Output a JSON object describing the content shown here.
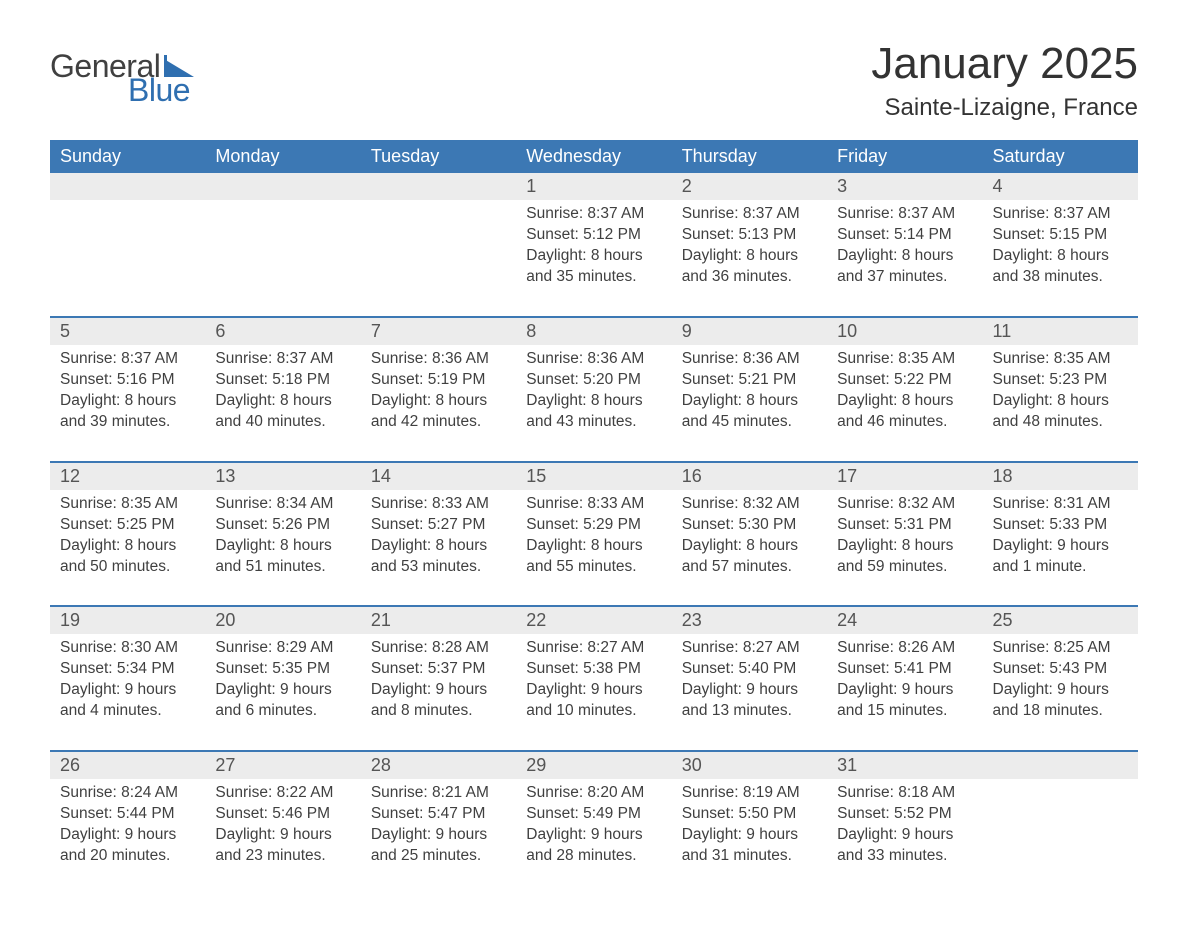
{
  "logo": {
    "word1": "General",
    "word2": "Blue",
    "flag_color": "#2f6fb0",
    "text_color": "#404040"
  },
  "title": "January 2025",
  "location": "Sainte-Lizaigne, France",
  "colors": {
    "header_bg": "#3c78b4",
    "header_text": "#ffffff",
    "daynum_bg": "#ececec",
    "row_separator": "#3c78b4",
    "body_text": "#404040",
    "background": "#ffffff"
  },
  "fonts": {
    "title_size_pt": 33,
    "location_size_pt": 18,
    "dayheader_size_pt": 14,
    "body_size_pt": 12
  },
  "day_headers": [
    "Sunday",
    "Monday",
    "Tuesday",
    "Wednesday",
    "Thursday",
    "Friday",
    "Saturday"
  ],
  "weeks": [
    [
      null,
      null,
      null,
      {
        "d": "1",
        "sunrise": "Sunrise: 8:37 AM",
        "sunset": "Sunset: 5:12 PM",
        "dl1": "Daylight: 8 hours",
        "dl2": "and 35 minutes."
      },
      {
        "d": "2",
        "sunrise": "Sunrise: 8:37 AM",
        "sunset": "Sunset: 5:13 PM",
        "dl1": "Daylight: 8 hours",
        "dl2": "and 36 minutes."
      },
      {
        "d": "3",
        "sunrise": "Sunrise: 8:37 AM",
        "sunset": "Sunset: 5:14 PM",
        "dl1": "Daylight: 8 hours",
        "dl2": "and 37 minutes."
      },
      {
        "d": "4",
        "sunrise": "Sunrise: 8:37 AM",
        "sunset": "Sunset: 5:15 PM",
        "dl1": "Daylight: 8 hours",
        "dl2": "and 38 minutes."
      }
    ],
    [
      {
        "d": "5",
        "sunrise": "Sunrise: 8:37 AM",
        "sunset": "Sunset: 5:16 PM",
        "dl1": "Daylight: 8 hours",
        "dl2": "and 39 minutes."
      },
      {
        "d": "6",
        "sunrise": "Sunrise: 8:37 AM",
        "sunset": "Sunset: 5:18 PM",
        "dl1": "Daylight: 8 hours",
        "dl2": "and 40 minutes."
      },
      {
        "d": "7",
        "sunrise": "Sunrise: 8:36 AM",
        "sunset": "Sunset: 5:19 PM",
        "dl1": "Daylight: 8 hours",
        "dl2": "and 42 minutes."
      },
      {
        "d": "8",
        "sunrise": "Sunrise: 8:36 AM",
        "sunset": "Sunset: 5:20 PM",
        "dl1": "Daylight: 8 hours",
        "dl2": "and 43 minutes."
      },
      {
        "d": "9",
        "sunrise": "Sunrise: 8:36 AM",
        "sunset": "Sunset: 5:21 PM",
        "dl1": "Daylight: 8 hours",
        "dl2": "and 45 minutes."
      },
      {
        "d": "10",
        "sunrise": "Sunrise: 8:35 AM",
        "sunset": "Sunset: 5:22 PM",
        "dl1": "Daylight: 8 hours",
        "dl2": "and 46 minutes."
      },
      {
        "d": "11",
        "sunrise": "Sunrise: 8:35 AM",
        "sunset": "Sunset: 5:23 PM",
        "dl1": "Daylight: 8 hours",
        "dl2": "and 48 minutes."
      }
    ],
    [
      {
        "d": "12",
        "sunrise": "Sunrise: 8:35 AM",
        "sunset": "Sunset: 5:25 PM",
        "dl1": "Daylight: 8 hours",
        "dl2": "and 50 minutes."
      },
      {
        "d": "13",
        "sunrise": "Sunrise: 8:34 AM",
        "sunset": "Sunset: 5:26 PM",
        "dl1": "Daylight: 8 hours",
        "dl2": "and 51 minutes."
      },
      {
        "d": "14",
        "sunrise": "Sunrise: 8:33 AM",
        "sunset": "Sunset: 5:27 PM",
        "dl1": "Daylight: 8 hours",
        "dl2": "and 53 minutes."
      },
      {
        "d": "15",
        "sunrise": "Sunrise: 8:33 AM",
        "sunset": "Sunset: 5:29 PM",
        "dl1": "Daylight: 8 hours",
        "dl2": "and 55 minutes."
      },
      {
        "d": "16",
        "sunrise": "Sunrise: 8:32 AM",
        "sunset": "Sunset: 5:30 PM",
        "dl1": "Daylight: 8 hours",
        "dl2": "and 57 minutes."
      },
      {
        "d": "17",
        "sunrise": "Sunrise: 8:32 AM",
        "sunset": "Sunset: 5:31 PM",
        "dl1": "Daylight: 8 hours",
        "dl2": "and 59 minutes."
      },
      {
        "d": "18",
        "sunrise": "Sunrise: 8:31 AM",
        "sunset": "Sunset: 5:33 PM",
        "dl1": "Daylight: 9 hours",
        "dl2": "and 1 minute."
      }
    ],
    [
      {
        "d": "19",
        "sunrise": "Sunrise: 8:30 AM",
        "sunset": "Sunset: 5:34 PM",
        "dl1": "Daylight: 9 hours",
        "dl2": "and 4 minutes."
      },
      {
        "d": "20",
        "sunrise": "Sunrise: 8:29 AM",
        "sunset": "Sunset: 5:35 PM",
        "dl1": "Daylight: 9 hours",
        "dl2": "and 6 minutes."
      },
      {
        "d": "21",
        "sunrise": "Sunrise: 8:28 AM",
        "sunset": "Sunset: 5:37 PM",
        "dl1": "Daylight: 9 hours",
        "dl2": "and 8 minutes."
      },
      {
        "d": "22",
        "sunrise": "Sunrise: 8:27 AM",
        "sunset": "Sunset: 5:38 PM",
        "dl1": "Daylight: 9 hours",
        "dl2": "and 10 minutes."
      },
      {
        "d": "23",
        "sunrise": "Sunrise: 8:27 AM",
        "sunset": "Sunset: 5:40 PM",
        "dl1": "Daylight: 9 hours",
        "dl2": "and 13 minutes."
      },
      {
        "d": "24",
        "sunrise": "Sunrise: 8:26 AM",
        "sunset": "Sunset: 5:41 PM",
        "dl1": "Daylight: 9 hours",
        "dl2": "and 15 minutes."
      },
      {
        "d": "25",
        "sunrise": "Sunrise: 8:25 AM",
        "sunset": "Sunset: 5:43 PM",
        "dl1": "Daylight: 9 hours",
        "dl2": "and 18 minutes."
      }
    ],
    [
      {
        "d": "26",
        "sunrise": "Sunrise: 8:24 AM",
        "sunset": "Sunset: 5:44 PM",
        "dl1": "Daylight: 9 hours",
        "dl2": "and 20 minutes."
      },
      {
        "d": "27",
        "sunrise": "Sunrise: 8:22 AM",
        "sunset": "Sunset: 5:46 PM",
        "dl1": "Daylight: 9 hours",
        "dl2": "and 23 minutes."
      },
      {
        "d": "28",
        "sunrise": "Sunrise: 8:21 AM",
        "sunset": "Sunset: 5:47 PM",
        "dl1": "Daylight: 9 hours",
        "dl2": "and 25 minutes."
      },
      {
        "d": "29",
        "sunrise": "Sunrise: 8:20 AM",
        "sunset": "Sunset: 5:49 PM",
        "dl1": "Daylight: 9 hours",
        "dl2": "and 28 minutes."
      },
      {
        "d": "30",
        "sunrise": "Sunrise: 8:19 AM",
        "sunset": "Sunset: 5:50 PM",
        "dl1": "Daylight: 9 hours",
        "dl2": "and 31 minutes."
      },
      {
        "d": "31",
        "sunrise": "Sunrise: 8:18 AM",
        "sunset": "Sunset: 5:52 PM",
        "dl1": "Daylight: 9 hours",
        "dl2": "and 33 minutes."
      },
      null
    ]
  ]
}
